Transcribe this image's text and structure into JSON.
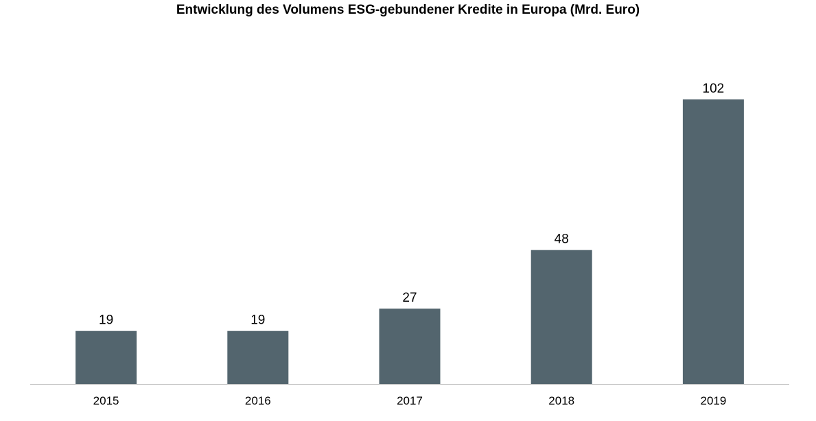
{
  "chart_data": {
    "type": "bar",
    "title": "Entwicklung des Volumens ESG-gebundener Kredite in Europa (Mrd. Euro)",
    "categories": [
      "2015",
      "2016",
      "2017",
      "2018",
      "2019"
    ],
    "values": [
      19,
      19,
      27,
      48,
      102
    ],
    "data_labels": [
      "19",
      "19",
      "27",
      "48",
      "102"
    ],
    "xlabel": "",
    "ylabel": "",
    "ylim": [
      0,
      102
    ],
    "grid": false,
    "legend": "none",
    "bar_color": "#53656e",
    "axis_color": "#bfbfbf"
  }
}
